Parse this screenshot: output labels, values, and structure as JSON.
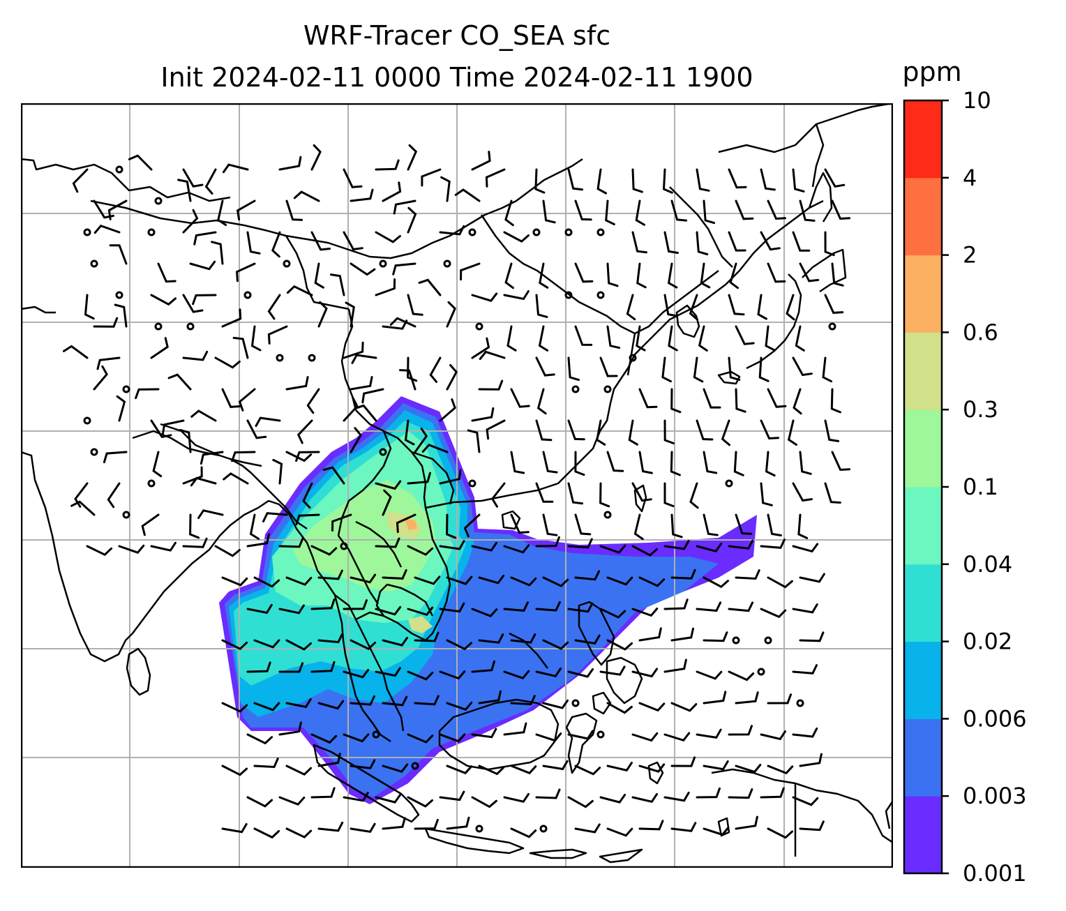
{
  "title": {
    "line1": "WRF-Tracer CO_SEA sfc",
    "line2": "Init 2024-02-11 0000 Time 2024-02-11 1900"
  },
  "colorbar": {
    "unit": "ppm",
    "levels": [
      "0.001",
      "0.003",
      "0.006",
      "0.02",
      "0.04",
      "0.1",
      "0.3",
      "0.6",
      "2",
      "4",
      "10"
    ],
    "colors": [
      "#6a2cff",
      "#3a72f2",
      "#08b2ea",
      "#30dfd4",
      "#6cf6c0",
      "#9ef79a",
      "#d1e08a",
      "#fcb062",
      "#ff7040",
      "#ff2a18"
    ]
  },
  "map": {
    "gridline_color": "#b0b0b0",
    "coastline_color": "#000000",
    "features": [
      "coastlines",
      "country borders",
      "wind barbs",
      "gridlines"
    ]
  }
}
